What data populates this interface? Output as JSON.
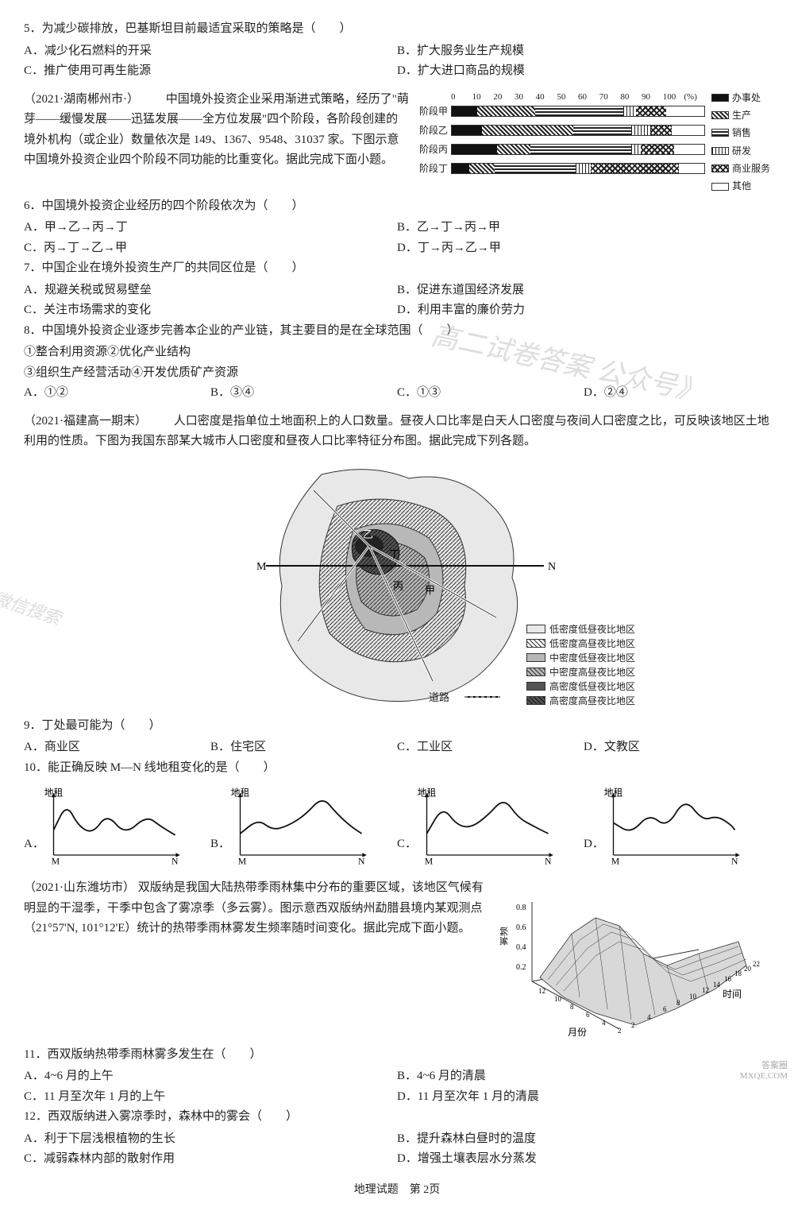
{
  "q5": {
    "stem": "5．为减少碳排放，巴基斯坦目前最适宜采取的策略是（　　）",
    "A": "A．减少化石燃料的开采",
    "B": "B．扩大服务业生产规模",
    "C": "C．推广使用可再生能源",
    "D": "D．扩大进口商品的规模"
  },
  "passage_b": {
    "src": "（2021·湖南郴州市·）",
    "text1": "　　中国境外投资企业采用渐进式策略，经历了\"萌芽——缓慢发展——迅猛发展——全方位发展\"四个阶段，各阶段创建的境外机构（或企业）数量依次是 149、1367、9548、31037 家。下图示意中国境外投资企业四个阶段不同功能的比重变化。据此完成下面小题。"
  },
  "barchart": {
    "axis": [
      "0",
      "10",
      "20",
      "30",
      "40",
      "50",
      "60",
      "70",
      "80",
      "90",
      "100",
      "(%)"
    ],
    "rows": [
      "阶段甲",
      "阶段乙",
      "阶段丙",
      "阶段丁"
    ],
    "legend": [
      "办事处",
      "生产",
      "销售",
      "研发",
      "商业服务",
      "其他"
    ],
    "series": {
      "阶段甲": {
        "office": 10,
        "prod": 23,
        "sale": 35,
        "rd": 5,
        "biz": 12,
        "other": 15
      },
      "阶段乙": {
        "office": 12,
        "prod": 36,
        "sale": 23,
        "rd": 8,
        "biz": 8,
        "other": 13
      },
      "阶段丙": {
        "office": 18,
        "prod": 13,
        "sale": 40,
        "rd": 4,
        "biz": 13,
        "other": 12
      },
      "阶段丁": {
        "office": 7,
        "prod": 10,
        "sale": 32,
        "rd": 6,
        "biz": 35,
        "other": 10
      }
    },
    "colors": {
      "border": "#333",
      "background": "#ffffff"
    }
  },
  "q6": {
    "stem": "6．中国境外投资企业经历的四个阶段依次为（　　）",
    "A": "A．甲→乙→丙→丁",
    "B": "B．乙→丁→丙→甲",
    "C": "C．丙→丁→乙→甲",
    "D": "D．丁→丙→乙→甲"
  },
  "q7": {
    "stem": "7．中国企业在境外投资生产厂的共同区位是（　　）",
    "A": "A．规避关税或贸易壁垒",
    "B": "B．促进东道国经济发展",
    "C": "C．关注市场需求的变化",
    "D": "D．利用丰富的廉价劳力"
  },
  "q8": {
    "stem": "8．中国境外投资企业逐步完善本企业的产业链，其主要目的是在全球范围（　　）",
    "l1": "①整合利用资源②优化产业结构",
    "l2": "③组织生产经营活动④开发优质矿产资源",
    "A": "A．①②",
    "B": "B．③④",
    "C": "C．①③",
    "D": "D．②④"
  },
  "passage_c": {
    "src": "（2021·福建高一期末）",
    "text": "　　人口密度是指单位土地面积上的人口数量。昼夜人口比率是白天人口密度与夜间人口密度之比，可反映该地区土地利用的性质。下图为我国东部某大城市人口密度和昼夜人口比率特征分布图。据此完成下列各题。"
  },
  "map": {
    "line_label_left": "M",
    "line_label_right": "N",
    "road_label": "道路",
    "markers": [
      "乙",
      "丁",
      "丙",
      "甲"
    ],
    "legend": [
      "低密度低昼夜比地区",
      "低密度高昼夜比地区",
      "中密度低昼夜比地区",
      "中密度高昼夜比地区",
      "高密度低昼夜比地区",
      "高密度高昼夜比地区"
    ],
    "legend_patterns": [
      "#e8e8e8",
      "hatch-d",
      "#b8b8b8",
      "hatch-m",
      "#555",
      "hatch-h"
    ],
    "colors": {
      "outline": "#333",
      "road": "#fff",
      "bg": "#fff"
    }
  },
  "q9": {
    "stem": "9．丁处最可能为（　　）",
    "A": "A．商业区",
    "B": "B．住宅区",
    "C": "C．工业区",
    "D": "D．文教区"
  },
  "q10": {
    "stem": "10．能正确反映 M—N 线地租变化的是（　　）",
    "axis_y": "地租",
    "axis_x_left": "M",
    "axis_x_right": "N",
    "options": [
      "A．",
      "B．",
      "C．",
      "D．"
    ],
    "curves": {
      "A": [
        [
          0,
          35
        ],
        [
          18,
          72
        ],
        [
          35,
          40
        ],
        [
          55,
          30
        ],
        [
          75,
          58
        ],
        [
          100,
          28
        ],
        [
          130,
          55
        ],
        [
          150,
          40
        ],
        [
          170,
          28
        ]
      ],
      "B": [
        [
          0,
          30
        ],
        [
          25,
          50
        ],
        [
          45,
          35
        ],
        [
          65,
          40
        ],
        [
          90,
          55
        ],
        [
          115,
          82
        ],
        [
          135,
          58
        ],
        [
          155,
          40
        ],
        [
          170,
          30
        ]
      ],
      "C": [
        [
          0,
          30
        ],
        [
          22,
          68
        ],
        [
          42,
          42
        ],
        [
          62,
          38
        ],
        [
          85,
          55
        ],
        [
          108,
          80
        ],
        [
          128,
          52
        ],
        [
          150,
          40
        ],
        [
          170,
          30
        ]
      ],
      "D": [
        [
          0,
          45
        ],
        [
          25,
          30
        ],
        [
          50,
          58
        ],
        [
          75,
          38
        ],
        [
          100,
          80
        ],
        [
          125,
          48
        ],
        [
          145,
          55
        ],
        [
          165,
          42
        ],
        [
          170,
          35
        ]
      ]
    },
    "style": {
      "stroke": "#111",
      "stroke_width": 2,
      "axis_color": "#111"
    }
  },
  "passage_d": {
    "src": "（2021·山东潍坊市）",
    "text": "双版纳是我国大陆热带季雨林集中分布的重要区域，该地区气候有明显的干湿季，干季中包含了雾凉季（多云雾）。图示意西双版纳州勐腊县境内某观测点（21°57'N, 101°12'E）统计的热带季雨林雾发生频率随时间变化。据此完成下面小题。"
  },
  "plot3d": {
    "z_label": "雾频",
    "x_label": "月份",
    "y_label": "时间",
    "z_ticks": [
      "0.8",
      "0.6",
      "0.4",
      "0.2"
    ],
    "x_ticks": [
      "12",
      "10",
      "8",
      "6",
      "4",
      "2"
    ],
    "y_ticks": [
      "2",
      "4",
      "6",
      "8",
      "10",
      "12",
      "14",
      "16",
      "18",
      "20",
      "22"
    ],
    "colors": {
      "surface": "#d8d8d8",
      "edge": "#333",
      "axis": "#333"
    }
  },
  "q11": {
    "stem": "11．西双版纳热带季雨林雾多发生在（　　）",
    "A": "A．4~6 月的上午",
    "B": "B．4~6 月的清晨",
    "C": "C．11 月至次年 1 月的上午",
    "D": "D．11 月至次年 1 月的清晨"
  },
  "q12": {
    "stem": "12．西双版纳进入雾凉季时，森林中的雾会（　　）",
    "A": "A．利于下层浅根植物的生长",
    "B": "B．提升森林白昼时的温度",
    "C": "C．减弱森林内部的散射作用",
    "D": "D．增强土壤表层水分蒸发"
  },
  "footer": "地理试题　第 2页",
  "watermarks": {
    "a": "微信搜索",
    "b": "高二试卷答案 公众号》"
  },
  "corner": {
    "a": "答案圈",
    "b": "MXQE.COM"
  }
}
